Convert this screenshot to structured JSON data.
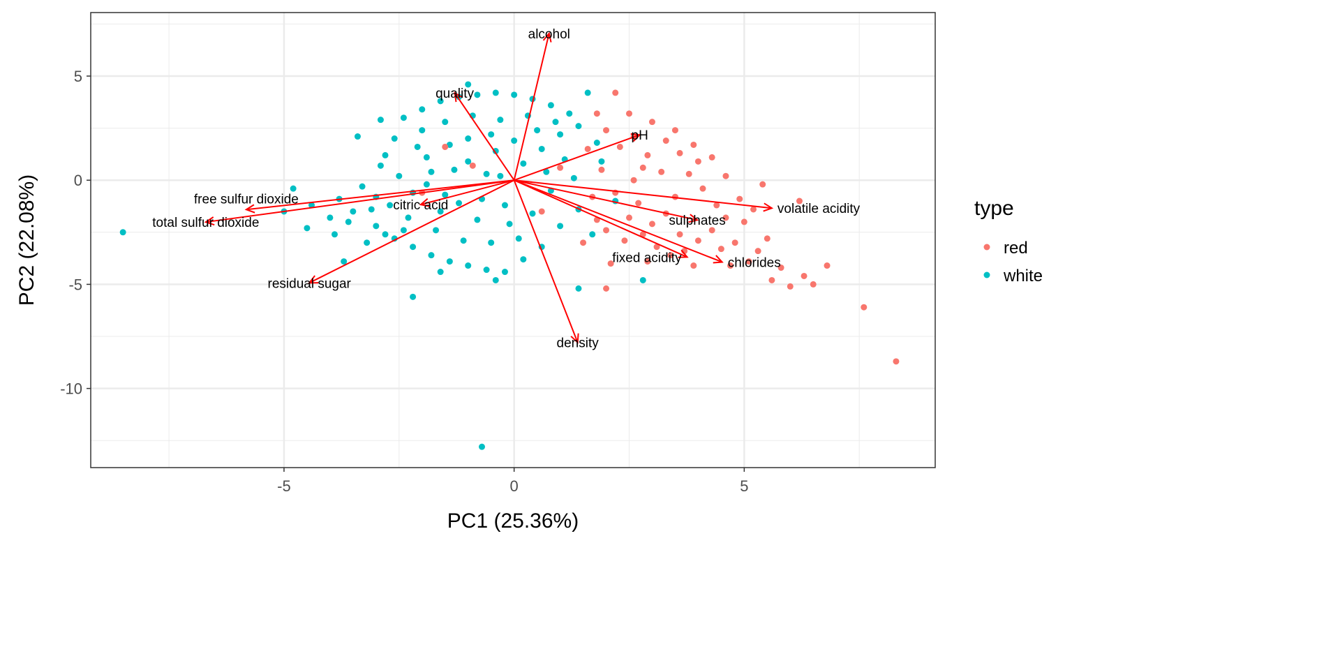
{
  "chart_data": {
    "type": "scatter",
    "subtype": "pca-biplot",
    "xlabel": "PC1 (25.36%)",
    "ylabel": "PC2 (22.08%)",
    "xlim": [
      -9.2,
      9.15
    ],
    "ylim": [
      -13.8,
      8.05
    ],
    "xticks": [
      -5,
      0,
      5
    ],
    "yticks": [
      5,
      0,
      -5,
      -10
    ],
    "xtick_labels": [
      "-5",
      "0",
      "5"
    ],
    "ytick_labels": [
      "5",
      "0",
      "-5",
      "-10"
    ],
    "grid": true,
    "legend": {
      "title": "type",
      "position": "right",
      "entries": [
        "red",
        "white"
      ]
    },
    "colors": {
      "red": "#F8766D",
      "white": "#00BFC4",
      "arrow": "#FF0000",
      "grid": "#EBEBEB"
    },
    "loadings": [
      {
        "name": "alcohol",
        "x": 0.76,
        "y": 7.05
      },
      {
        "name": "quality",
        "x": -1.29,
        "y": 4.19
      },
      {
        "name": "pH",
        "x": 2.73,
        "y": 2.18
      },
      {
        "name": "volatile acidity",
        "x": 5.6,
        "y": -1.34
      },
      {
        "name": "sulphates",
        "x": 3.98,
        "y": -1.91
      },
      {
        "name": "fixed acidity",
        "x": 3.76,
        "y": -3.69
      },
      {
        "name": "chlorides",
        "x": 4.52,
        "y": -3.93
      },
      {
        "name": "density",
        "x": 1.38,
        "y": -7.79
      },
      {
        "name": "residual sugar",
        "x": -4.45,
        "y": -4.93
      },
      {
        "name": "citric acid",
        "x": -2.03,
        "y": -1.17
      },
      {
        "name": "free sulfur dioxide",
        "x": -5.82,
        "y": -1.41
      },
      {
        "name": "total sulfur dioxide",
        "x": -6.7,
        "y": -2.01
      }
    ],
    "series": [
      {
        "name": "white",
        "points": [
          [
            -8.5,
            -2.5
          ],
          [
            -0.7,
            -12.8
          ],
          [
            -2.2,
            -5.6
          ],
          [
            -1.0,
            4.6
          ],
          [
            -3.7,
            -3.9
          ],
          [
            -2.9,
            2.9
          ],
          [
            2.8,
            -4.8
          ],
          [
            1.4,
            -5.2
          ],
          [
            -3.9,
            -2.6
          ],
          [
            -4.4,
            -1.2
          ],
          [
            -4.8,
            -0.4
          ],
          [
            -3.2,
            -3.0
          ],
          [
            -3.5,
            -1.5
          ],
          [
            -3.0,
            -0.8
          ],
          [
            -2.8,
            1.2
          ],
          [
            -2.6,
            2.0
          ],
          [
            -2.4,
            3.0
          ],
          [
            -2.0,
            3.4
          ],
          [
            -1.6,
            3.8
          ],
          [
            -1.2,
            4.0
          ],
          [
            -0.8,
            4.1
          ],
          [
            -0.4,
            4.2
          ],
          [
            0.0,
            4.1
          ],
          [
            0.4,
            3.9
          ],
          [
            0.8,
            3.6
          ],
          [
            1.2,
            3.2
          ],
          [
            1.6,
            4.2
          ],
          [
            1.4,
            2.6
          ],
          [
            1.8,
            1.8
          ],
          [
            1.0,
            2.2
          ],
          [
            -3.0,
            -2.2
          ],
          [
            -2.6,
            -2.8
          ],
          [
            -2.2,
            -3.2
          ],
          [
            -1.8,
            -3.6
          ],
          [
            -1.4,
            -3.9
          ],
          [
            -1.0,
            -4.1
          ],
          [
            -0.6,
            -4.3
          ],
          [
            -0.2,
            -4.4
          ],
          [
            0.2,
            -3.8
          ],
          [
            0.6,
            -3.2
          ],
          [
            -2.5,
            0.2
          ],
          [
            -2.2,
            -0.6
          ],
          [
            -1.9,
            1.1
          ],
          [
            -1.6,
            -1.5
          ],
          [
            -1.3,
            0.5
          ],
          [
            -1.0,
            2.0
          ],
          [
            -0.7,
            -0.9
          ],
          [
            -0.4,
            1.4
          ],
          [
            -0.1,
            -2.1
          ],
          [
            0.2,
            0.8
          ],
          [
            0.5,
            2.4
          ],
          [
            0.8,
            -0.5
          ],
          [
            1.1,
            1.0
          ],
          [
            1.4,
            -1.4
          ],
          [
            -2.0,
            2.4
          ],
          [
            -1.5,
            2.8
          ],
          [
            -0.9,
            3.1
          ],
          [
            -0.3,
            2.9
          ],
          [
            0.3,
            3.1
          ],
          [
            -2.3,
            -1.8
          ],
          [
            -1.7,
            -2.4
          ],
          [
            -1.1,
            -2.9
          ],
          [
            -0.5,
            -3.0
          ],
          [
            0.1,
            -2.8
          ],
          [
            -2.7,
            -1.2
          ],
          [
            -3.3,
            -0.3
          ],
          [
            -3.6,
            -2.0
          ],
          [
            -2.9,
            0.7
          ],
          [
            -1.4,
            1.7
          ],
          [
            -0.6,
            0.3
          ],
          [
            0.0,
            1.9
          ],
          [
            0.6,
            1.5
          ],
          [
            -1.9,
            -0.2
          ],
          [
            -1.2,
            -1.1
          ],
          [
            -0.8,
            -1.9
          ],
          [
            -0.2,
            -1.2
          ],
          [
            0.4,
            -1.6
          ],
          [
            1.0,
            -2.2
          ],
          [
            -2.4,
            -2.4
          ],
          [
            -3.1,
            -1.4
          ],
          [
            -1.8,
            0.4
          ],
          [
            -1.0,
            0.9
          ],
          [
            -0.3,
            0.2
          ],
          [
            0.7,
            0.4
          ],
          [
            1.3,
            0.1
          ],
          [
            -2.1,
            1.6
          ],
          [
            -0.5,
            2.2
          ],
          [
            0.9,
            2.8
          ],
          [
            -1.5,
            -0.7
          ],
          [
            -2.8,
            -2.6
          ],
          [
            -4.0,
            -1.8
          ],
          [
            -5.0,
            -1.5
          ],
          [
            -3.4,
            2.1
          ],
          [
            1.7,
            -2.6
          ],
          [
            2.2,
            -1.0
          ],
          [
            1.9,
            0.9
          ],
          [
            -1.6,
            -4.4
          ],
          [
            -0.4,
            -4.8
          ],
          [
            -3.8,
            -0.9
          ],
          [
            -4.5,
            -2.3
          ]
        ]
      },
      {
        "name": "red",
        "points": [
          [
            7.6,
            -6.1
          ],
          [
            8.3,
            -8.7
          ],
          [
            6.8,
            -4.1
          ],
          [
            6.5,
            -5.0
          ],
          [
            6.2,
            -1.0
          ],
          [
            5.8,
            -4.2
          ],
          [
            6.0,
            -5.1
          ],
          [
            6.3,
            -4.6
          ],
          [
            5.4,
            -0.2
          ],
          [
            4.7,
            -4.1
          ],
          [
            2.2,
            4.2
          ],
          [
            1.8,
            3.2
          ],
          [
            2.0,
            -5.2
          ],
          [
            5.6,
            -4.8
          ],
          [
            5.1,
            -3.9
          ],
          [
            5.5,
            -2.8
          ],
          [
            5.0,
            -2.0
          ],
          [
            4.9,
            -0.9
          ],
          [
            4.6,
            0.2
          ],
          [
            4.3,
            1.1
          ],
          [
            3.9,
            1.7
          ],
          [
            3.5,
            2.4
          ],
          [
            3.0,
            2.8
          ],
          [
            2.5,
            3.2
          ],
          [
            2.0,
            2.4
          ],
          [
            1.6,
            1.5
          ],
          [
            1.9,
            0.5
          ],
          [
            2.2,
            -0.6
          ],
          [
            2.5,
            -1.8
          ],
          [
            2.8,
            -2.6
          ],
          [
            3.1,
            -3.2
          ],
          [
            3.4,
            -3.6
          ],
          [
            3.7,
            -3.4
          ],
          [
            4.0,
            -2.9
          ],
          [
            4.3,
            -2.4
          ],
          [
            4.6,
            -1.8
          ],
          [
            3.2,
            0.4
          ],
          [
            2.9,
            1.2
          ],
          [
            2.6,
            0.0
          ],
          [
            3.5,
            -0.8
          ],
          [
            3.8,
            0.3
          ],
          [
            4.1,
            -0.4
          ],
          [
            4.4,
            -1.2
          ],
          [
            3.3,
            -1.6
          ],
          [
            2.7,
            -1.1
          ],
          [
            2.3,
            1.6
          ],
          [
            3.6,
            1.3
          ],
          [
            4.0,
            0.9
          ],
          [
            3.0,
            -2.1
          ],
          [
            2.4,
            -2.9
          ],
          [
            1.8,
            -1.9
          ],
          [
            1.5,
            -3.0
          ],
          [
            2.1,
            -4.0
          ],
          [
            2.9,
            -3.9
          ],
          [
            3.9,
            -4.1
          ],
          [
            4.5,
            -3.3
          ],
          [
            5.2,
            -1.4
          ],
          [
            2.6,
            2.1
          ],
          [
            3.3,
            1.9
          ],
          [
            1.7,
            -0.8
          ],
          [
            -2.0,
            -0.6
          ],
          [
            -1.5,
            1.6
          ],
          [
            -0.9,
            0.7
          ],
          [
            0.6,
            -1.5
          ],
          [
            1.0,
            0.6
          ],
          [
            4.8,
            -3.0
          ],
          [
            5.3,
            -3.4
          ],
          [
            3.6,
            -2.6
          ],
          [
            2.0,
            -2.4
          ],
          [
            2.8,
            0.6
          ]
        ]
      }
    ]
  }
}
